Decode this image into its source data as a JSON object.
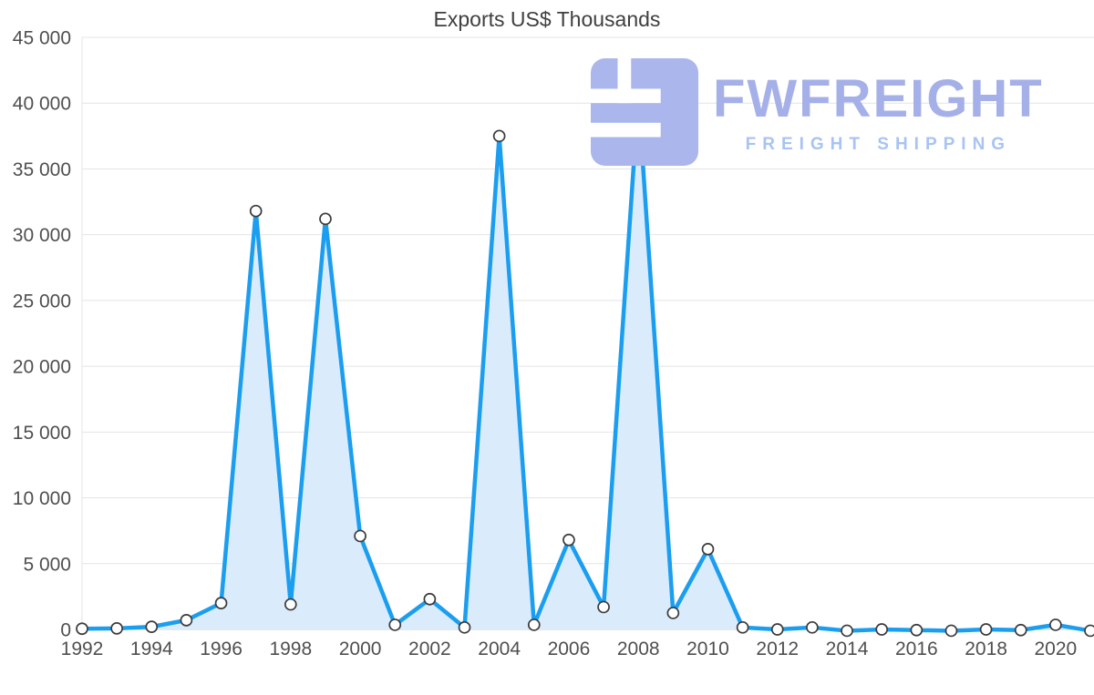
{
  "title": "Exports US$ Thousands",
  "logo": {
    "name": "FWFREIGHT",
    "tagline": "FREIGHT SHIPPING"
  },
  "colors": {
    "line": "#1b9ef0",
    "area": "#daecfc",
    "grid": "#e4e4e4",
    "zero_line": "#d2d2d2",
    "axis_text": "#4f4f4f",
    "title_text": "#3f3f3f",
    "marker_fill": "#ffffff",
    "marker_stroke": "#3c3c3c",
    "logo_text": "#a5b0e9",
    "logo_tagline": "#a9c3f2",
    "logo_glyph": "#aab6ec"
  },
  "chart_data": {
    "type": "area",
    "title": "Exports US$ Thousands",
    "xlabel": "",
    "ylabel": "Exports US$ Thousands",
    "categories": [
      1992,
      1993,
      1994,
      1995,
      1996,
      1997,
      1998,
      1999,
      2000,
      2001,
      2002,
      2003,
      2004,
      2005,
      2006,
      2007,
      2008,
      2009,
      2010,
      2011,
      2012,
      2013,
      2014,
      2015,
      2016,
      2017,
      2018,
      2019,
      2020,
      2021
    ],
    "values": [
      50,
      80,
      200,
      700,
      2000,
      31800,
      1900,
      31200,
      7100,
      350,
      2300,
      150,
      37500,
      350,
      6800,
      1700,
      40500,
      1250,
      6100,
      150,
      0,
      150,
      -100,
      0,
      -50,
      -100,
      0,
      -50,
      350,
      -100
    ],
    "ylim": [
      0,
      45000
    ],
    "ytick_values": [
      0,
      5000,
      10000,
      15000,
      20000,
      25000,
      30000,
      35000,
      40000,
      45000
    ],
    "ytick_labels": [
      "0",
      "5 000",
      "10 000",
      "15 000",
      "20 000",
      "25 000",
      "30 000",
      "35 000",
      "40 000",
      "45 000"
    ],
    "xtick_values": [
      1992,
      1994,
      1996,
      1998,
      2000,
      2002,
      2004,
      2006,
      2008,
      2010,
      2012,
      2014,
      2016,
      2018,
      2020
    ],
    "grid": true,
    "legend": false
  }
}
